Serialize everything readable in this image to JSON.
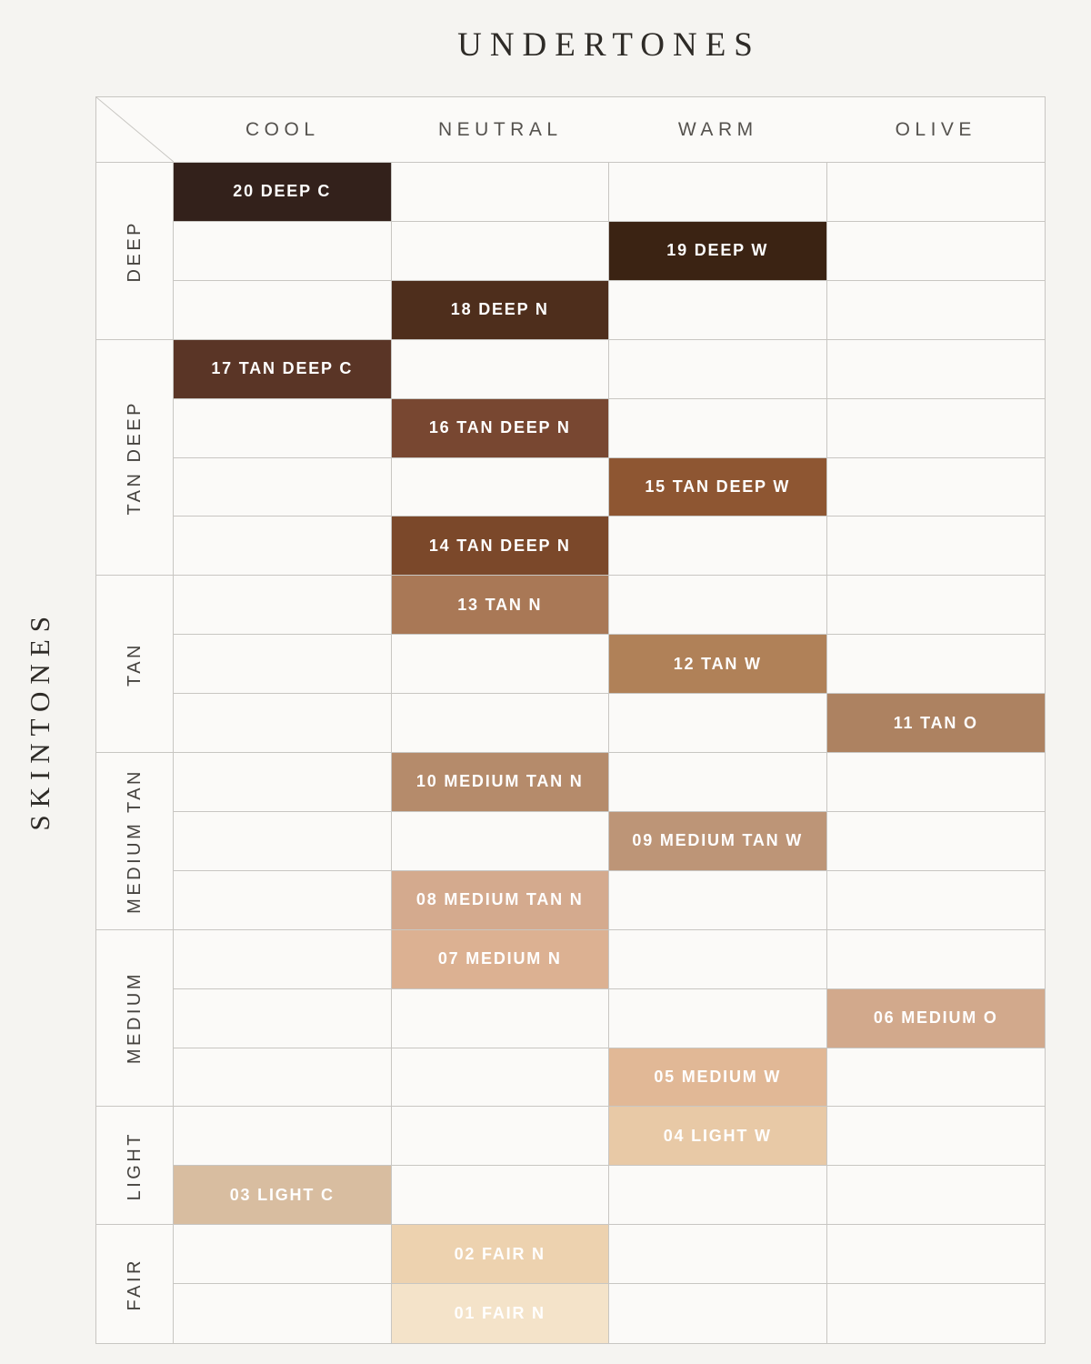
{
  "title": "UNDERTONES",
  "side_title": "SKINTONES",
  "colors": {
    "background": "#f5f4f1",
    "cell_background": "#fbfaf8",
    "grid_line": "#c8c6c2",
    "title_text": "#2e2b27",
    "header_text": "#55524e",
    "group_text": "#45423e",
    "cell_text": "#ffffff"
  },
  "chart_data": {
    "type": "table",
    "title": "UNDERTONES",
    "xlabel": "UNDERTONES",
    "ylabel": "SKINTONES",
    "columns": [
      "COOL",
      "NEUTRAL",
      "WARM",
      "OLIVE"
    ],
    "row_groups": [
      {
        "label": "DEEP",
        "rows": 3
      },
      {
        "label": "TAN DEEP",
        "rows": 4
      },
      {
        "label": "TAN",
        "rows": 3
      },
      {
        "label": "MEDIUM TAN",
        "rows": 3
      },
      {
        "label": "MEDIUM",
        "rows": 3
      },
      {
        "label": "LIGHT",
        "rows": 2
      },
      {
        "label": "FAIR",
        "rows": 2
      }
    ],
    "shades": [
      {
        "label": "20 DEEP C",
        "row": 1,
        "undertone": "COOL",
        "skintone": "DEEP",
        "color": "#33211b"
      },
      {
        "label": "19 DEEP W",
        "row": 2,
        "undertone": "WARM",
        "skintone": "DEEP",
        "color": "#3b2313"
      },
      {
        "label": "18 DEEP N",
        "row": 3,
        "undertone": "NEUTRAL",
        "skintone": "DEEP",
        "color": "#4e2e1c"
      },
      {
        "label": "17 TAN DEEP C",
        "row": 4,
        "undertone": "COOL",
        "skintone": "TAN DEEP",
        "color": "#5a3526"
      },
      {
        "label": "16 TAN DEEP N",
        "row": 5,
        "undertone": "NEUTRAL",
        "skintone": "TAN DEEP",
        "color": "#784731"
      },
      {
        "label": "15 TAN DEEP W",
        "row": 6,
        "undertone": "WARM",
        "skintone": "TAN DEEP",
        "color": "#8e5632"
      },
      {
        "label": "14 TAN DEEP N",
        "row": 7,
        "undertone": "NEUTRAL",
        "skintone": "TAN DEEP",
        "color": "#7b482a"
      },
      {
        "label": "13 TAN N",
        "row": 8,
        "undertone": "NEUTRAL",
        "skintone": "TAN",
        "color": "#a97856"
      },
      {
        "label": "12 TAN W",
        "row": 9,
        "undertone": "WARM",
        "skintone": "TAN",
        "color": "#b08158"
      },
      {
        "label": "11 TAN O",
        "row": 10,
        "undertone": "OLIVE",
        "skintone": "TAN",
        "color": "#ad8261"
      },
      {
        "label": "10 MEDIUM TAN N",
        "row": 11,
        "undertone": "NEUTRAL",
        "skintone": "MEDIUM TAN",
        "color": "#b58b6b"
      },
      {
        "label": "09 MEDIUM TAN W",
        "row": 12,
        "undertone": "WARM",
        "skintone": "MEDIUM TAN",
        "color": "#bd9577"
      },
      {
        "label": "08 MEDIUM TAN N",
        "row": 13,
        "undertone": "NEUTRAL",
        "skintone": "MEDIUM TAN",
        "color": "#d4aa8e"
      },
      {
        "label": "07 MEDIUM N",
        "row": 14,
        "undertone": "NEUTRAL",
        "skintone": "MEDIUM",
        "color": "#dcb192"
      },
      {
        "label": "06 MEDIUM O",
        "row": 15,
        "undertone": "OLIVE",
        "skintone": "MEDIUM",
        "color": "#d2a98c"
      },
      {
        "label": "05 MEDIUM W",
        "row": 16,
        "undertone": "WARM",
        "skintone": "MEDIUM",
        "color": "#e1b896"
      },
      {
        "label": "04 LIGHT W",
        "row": 17,
        "undertone": "WARM",
        "skintone": "LIGHT",
        "color": "#e8c9a6"
      },
      {
        "label": "03 LIGHT C",
        "row": 18,
        "undertone": "COOL",
        "skintone": "LIGHT",
        "color": "#d8bda0"
      },
      {
        "label": "02 FAIR N",
        "row": 19,
        "undertone": "NEUTRAL",
        "skintone": "FAIR",
        "color": "#edd2af"
      },
      {
        "label": "01 FAIR N",
        "row": 20,
        "undertone": "NEUTRAL",
        "skintone": "FAIR",
        "color": "#f4e3c9"
      }
    ]
  }
}
